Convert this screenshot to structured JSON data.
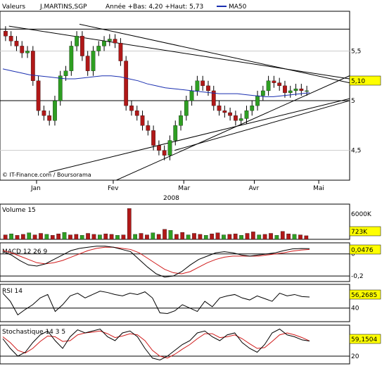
{
  "header": {
    "valeurs_label": "Valeurs",
    "symbol": "J.MARTINS,SGP",
    "annee_text": "Année +Bas: 4,20 +Haut: 5,73",
    "ma_label": "MA50"
  },
  "credit": "© IT-Finance.com / Boursorama",
  "year_label": "2008",
  "colors": {
    "up": "#2e9e22",
    "down": "#b01818",
    "ma": "#1a2fb0",
    "signal": "#d01a1a",
    "line": "#000000",
    "value_box": "#ffff00"
  },
  "chart_data": [
    {
      "type": "candlestick",
      "symbol": "J.MARTINS,SGP",
      "ylim": [
        4.2,
        5.9
      ],
      "yticks": [
        "5,5",
        "5",
        "4,5"
      ],
      "ytick_values": [
        5.5,
        5.0,
        4.5
      ],
      "xticks": [
        "Jan",
        "Fev",
        "Mar",
        "Avr",
        "Mai"
      ],
      "last_value": "5,10",
      "support_level": 5.0,
      "top_level": 5.72,
      "ma50": [
        5.32,
        5.3,
        5.28,
        5.26,
        5.25,
        5.24,
        5.23,
        5.22,
        5.22,
        5.23,
        5.24,
        5.25,
        5.25,
        5.24,
        5.22,
        5.2,
        5.17,
        5.15,
        5.13,
        5.12,
        5.11,
        5.1,
        5.09,
        5.08,
        5.07,
        5.07,
        5.07,
        5.06,
        5.05,
        5.04,
        5.04,
        5.05,
        5.06,
        5.07,
        5.08
      ],
      "closes": [
        5.65,
        5.6,
        5.55,
        5.48,
        5.5,
        5.2,
        4.9,
        4.85,
        4.8,
        5.0,
        5.25,
        5.3,
        5.55,
        5.65,
        5.45,
        5.3,
        5.5,
        5.55,
        5.6,
        5.62,
        5.58,
        5.4,
        4.95,
        4.9,
        4.85,
        4.75,
        4.7,
        4.55,
        4.5,
        4.45,
        4.6,
        4.75,
        4.85,
        5.0,
        5.1,
        5.2,
        5.15,
        5.1,
        4.95,
        4.9,
        4.88,
        4.85,
        4.8,
        4.82,
        4.9,
        4.95,
        5.05,
        5.1,
        5.2,
        5.18,
        5.15,
        5.08,
        5.1,
        5.12,
        5.1,
        5.1
      ]
    },
    {
      "type": "bar",
      "title": "Volume 15",
      "yticks": [
        "6000K"
      ],
      "last_value": "723K",
      "values": [
        0.9,
        1.1,
        0.8,
        1.0,
        1.3,
        0.9,
        1.2,
        1.0,
        0.8,
        1.1,
        1.4,
        0.9,
        1.0,
        0.8,
        1.2,
        1.0,
        0.9,
        1.1,
        1.0,
        0.8,
        0.9,
        6.2,
        1.0,
        1.2,
        0.9,
        1.3,
        1.0,
        2.0,
        1.8,
        1.0,
        1.4,
        0.9,
        1.2,
        1.0,
        0.8,
        1.1,
        1.3,
        0.9,
        1.0,
        1.1,
        0.8,
        1.2,
        1.5,
        0.9,
        1.0,
        1.2,
        0.8,
        1.6,
        1.1,
        1.0,
        0.9,
        0.72
      ]
    },
    {
      "type": "line",
      "title": "MACD 12 26 9",
      "yticks": [
        "0",
        "-0,2"
      ],
      "ytick_values": [
        0,
        -0.2
      ],
      "ylim": [
        -0.25,
        0.1
      ],
      "last_value": "0,0476",
      "macd": [
        0.02,
        -0.01,
        -0.06,
        -0.1,
        -0.11,
        -0.09,
        -0.05,
        -0.01,
        0.03,
        0.05,
        0.06,
        0.07,
        0.07,
        0.06,
        0.04,
        0.02,
        -0.05,
        -0.12,
        -0.18,
        -0.21,
        -0.2,
        -0.16,
        -0.1,
        -0.05,
        -0.02,
        0.01,
        0.02,
        0.01,
        -0.01,
        -0.02,
        -0.01,
        0.0,
        0.01,
        0.03,
        0.045,
        0.048,
        0.0476
      ],
      "signal": [
        0.03,
        0.01,
        -0.02,
        -0.05,
        -0.08,
        -0.09,
        -0.08,
        -0.06,
        -0.03,
        0.0,
        0.03,
        0.05,
        0.06,
        0.06,
        0.05,
        0.04,
        0.01,
        -0.04,
        -0.09,
        -0.14,
        -0.17,
        -0.18,
        -0.16,
        -0.12,
        -0.08,
        -0.05,
        -0.03,
        -0.02,
        -0.02,
        -0.02,
        -0.02,
        -0.01,
        0.0,
        0.01,
        0.025,
        0.035,
        0.04
      ]
    },
    {
      "type": "line",
      "title": "RSI 14",
      "yticks": [
        "40"
      ],
      "ytick_values": [
        40
      ],
      "ylim": [
        20,
        75
      ],
      "last_value": "56,2685",
      "values": [
        62,
        50,
        30,
        38,
        45,
        55,
        60,
        35,
        45,
        58,
        62,
        55,
        60,
        65,
        63,
        60,
        58,
        62,
        60,
        64,
        55,
        33,
        32,
        36,
        45,
        40,
        35,
        50,
        42,
        55,
        58,
        60,
        55,
        52,
        58,
        54,
        50,
        62,
        58,
        60,
        57,
        56.27
      ]
    },
    {
      "type": "line",
      "title": "Stochastique 14 3 5",
      "yticks": [
        "20"
      ],
      "ytick_values": [
        20
      ],
      "ylim": [
        0,
        100
      ],
      "last_value": "59,1504",
      "k": [
        65,
        40,
        20,
        30,
        55,
        75,
        85,
        60,
        40,
        70,
        88,
        80,
        85,
        90,
        70,
        60,
        80,
        85,
        70,
        40,
        15,
        10,
        20,
        35,
        50,
        60,
        80,
        85,
        70,
        60,
        75,
        80,
        55,
        40,
        30,
        50,
        80,
        90,
        75,
        70,
        62,
        59
      ],
      "d": [
        70,
        55,
        35,
        28,
        40,
        58,
        72,
        70,
        58,
        60,
        75,
        80,
        82,
        85,
        78,
        68,
        72,
        78,
        75,
        60,
        35,
        20,
        15,
        25,
        38,
        50,
        65,
        78,
        78,
        68,
        70,
        75,
        65,
        52,
        40,
        42,
        58,
        75,
        80,
        75,
        68,
        59.15
      ]
    }
  ]
}
